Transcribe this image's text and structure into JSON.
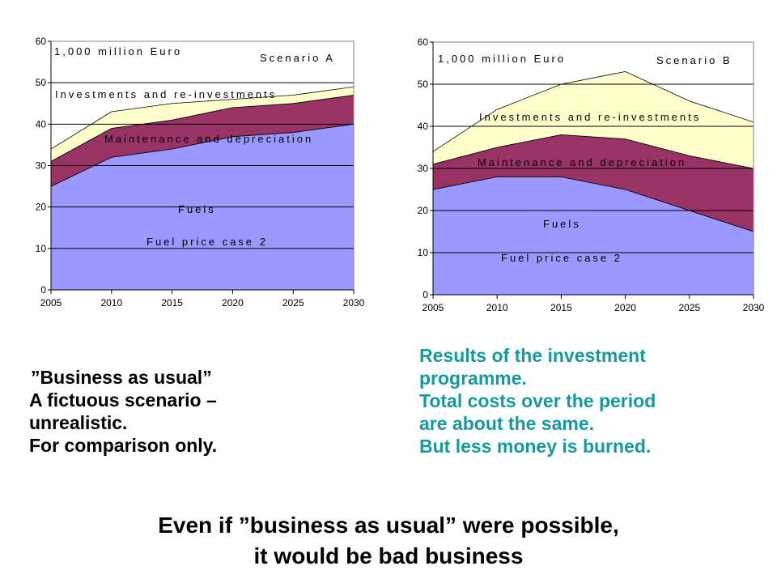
{
  "chart_data": [
    {
      "type": "area",
      "stacked": true,
      "x": [
        2005,
        2010,
        2015,
        2020,
        2025,
        2030
      ],
      "ylim": [
        0,
        60
      ],
      "yticks": [
        0,
        10,
        20,
        30,
        40,
        50,
        60
      ],
      "grid": "horizontal",
      "unit_label": "1,000 million Euro",
      "scenario_label": "Scenario A",
      "series": [
        {
          "name": "Fuels",
          "values": [
            25,
            32,
            34,
            37,
            38,
            40
          ],
          "color": "#9999ff"
        },
        {
          "name": "Maintenance and depreciation",
          "values": [
            6,
            7,
            7,
            7,
            7,
            7
          ],
          "color": "#993366"
        },
        {
          "name": "Investments and re-investments",
          "values": [
            3,
            4,
            4,
            2,
            2,
            2
          ],
          "color": "#ffffcc"
        }
      ],
      "annotation": "Fuel price case 2"
    },
    {
      "type": "area",
      "stacked": true,
      "x": [
        2005,
        2010,
        2015,
        2020,
        2025,
        2030
      ],
      "ylim": [
        0,
        60
      ],
      "yticks": [
        0,
        10,
        20,
        30,
        40,
        50,
        60
      ],
      "grid": "horizontal",
      "unit_label": "1,000 million Euro",
      "scenario_label": "Scenario B",
      "series": [
        {
          "name": "Fuels",
          "values": [
            25,
            28,
            28,
            25,
            20,
            15
          ],
          "color": "#9999ff"
        },
        {
          "name": "Maintenance and depreciation",
          "values": [
            6,
            7,
            10,
            12,
            13,
            15
          ],
          "color": "#993366"
        },
        {
          "name": "Investments and re-investments",
          "values": [
            3,
            9,
            12,
            16,
            13,
            11
          ],
          "color": "#ffffcc"
        }
      ],
      "annotation": "Fuel price case 2"
    }
  ],
  "notes": {
    "left": [
      "”Business as usual”",
      "A fictuous scenario –",
      "unrealistic.",
      "For comparison only."
    ],
    "right": [
      "Results of the investment",
      "programme.",
      "Total costs over the period",
      "are about the same.",
      "But less money is burned."
    ],
    "right_color": "#16999c"
  },
  "conclusion": [
    "Even if ”business as usual” were possible,",
    "it would be bad business"
  ]
}
